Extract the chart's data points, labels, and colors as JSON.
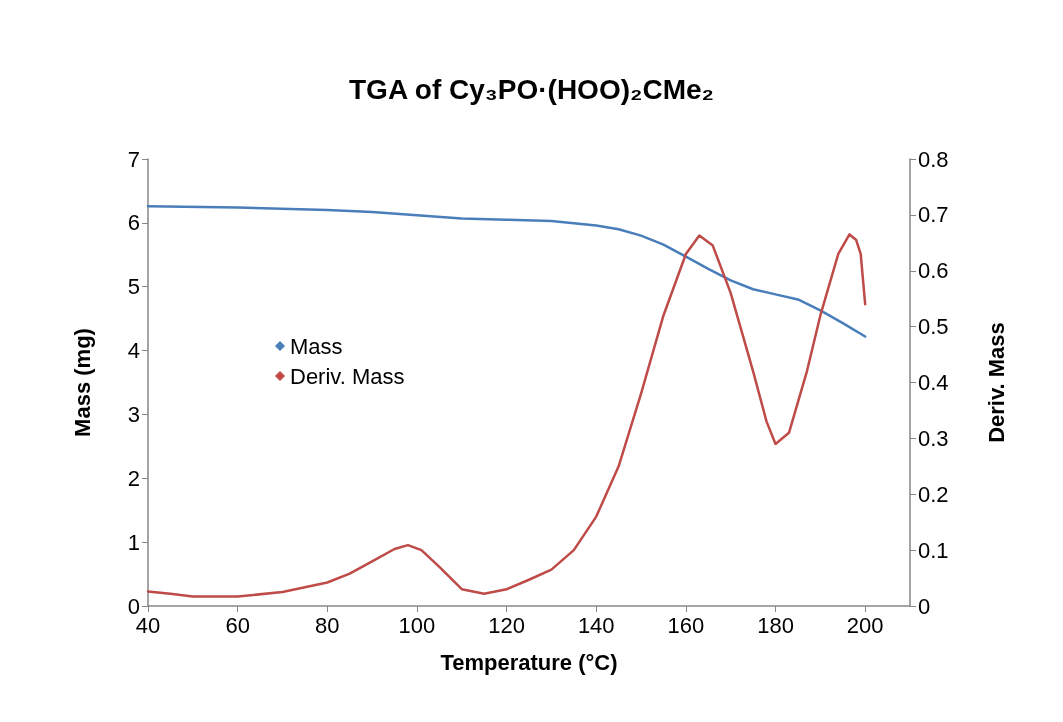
{
  "chart_data": {
    "type": "line",
    "title": "TGA of Cy₃PO·(HOO)₂CMe₂",
    "xlabel": "Temperature (°C)",
    "ylabel": "Mass (mg)",
    "y2label": "Deriv. Mass",
    "xlim": [
      40,
      210
    ],
    "xticks": [
      40,
      60,
      80,
      100,
      120,
      140,
      160,
      180,
      200
    ],
    "ylim": [
      0,
      7
    ],
    "yticks": [
      0,
      1,
      2,
      3,
      4,
      5,
      6,
      7
    ],
    "y2lim": [
      0,
      0.8
    ],
    "y2ticks": [
      0,
      0.1,
      0.2,
      0.3,
      0.4,
      0.5,
      0.6,
      0.7,
      0.8
    ],
    "grid": false,
    "legend": "left",
    "marker": "none",
    "line_style": "solid",
    "series": [
      {
        "name": "Mass",
        "color": "#4a7ebb",
        "x": [
          40,
          60,
          80,
          90,
          100,
          110,
          120,
          130,
          140,
          145,
          150,
          155,
          160,
          165,
          170,
          175,
          180,
          185,
          190,
          195,
          200
        ],
        "values": [
          6.26,
          6.24,
          6.2,
          6.17,
          6.12,
          6.07,
          6.05,
          6.03,
          5.96,
          5.9,
          5.8,
          5.66,
          5.47,
          5.28,
          5.1,
          4.96,
          4.88,
          4.8,
          4.63,
          4.43,
          4.22
        ]
      },
      {
        "name": "Deriv. Mass",
        "color": "#be4b48",
        "axis": "y2",
        "x": [
          40,
          45,
          50,
          60,
          70,
          80,
          85,
          90,
          95,
          98,
          101,
          105,
          110,
          115,
          120,
          125,
          130,
          135,
          140,
          145,
          150,
          155,
          160,
          163,
          166,
          170,
          175,
          178,
          180,
          183,
          187,
          190,
          194,
          196.5,
          198,
          199,
          200
        ],
        "values": [
          0.026,
          0.022,
          0.017,
          0.017,
          0.025,
          0.042,
          0.058,
          0.08,
          0.102,
          0.109,
          0.1,
          0.07,
          0.03,
          0.022,
          0.03,
          0.047,
          0.065,
          0.1,
          0.16,
          0.25,
          0.38,
          0.52,
          0.63,
          0.663,
          0.645,
          0.56,
          0.42,
          0.33,
          0.29,
          0.31,
          0.42,
          0.52,
          0.63,
          0.665,
          0.655,
          0.63,
          0.54
        ]
      }
    ]
  }
}
